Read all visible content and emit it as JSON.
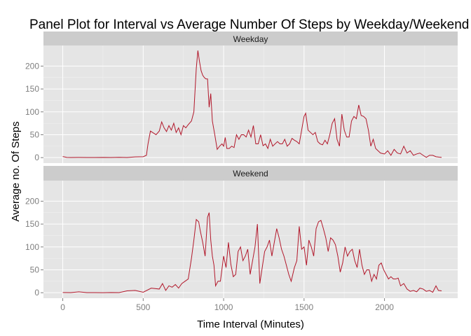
{
  "chart_data": {
    "type": "line",
    "title": "Panel Plot for Interval vs Average Number Of Steps by Weekday/Weekend",
    "xlabel": "Time Interval (Minutes)",
    "ylabel": "Average no. Of Steps",
    "xlim": [
      -120,
      2455
    ],
    "ylim": [
      -12,
      245
    ],
    "x_ticks": [
      0,
      500,
      1000,
      1500,
      2000
    ],
    "y_ticks": [
      0,
      50,
      100,
      150,
      200
    ],
    "grid": true,
    "line_color": "#b2182b",
    "panel_background": "#e5e5e5",
    "strip_background": "#cccccc",
    "panels": [
      {
        "label": "Weekday",
        "points": [
          [
            0,
            2.3
          ],
          [
            25,
            0.4
          ],
          [
            50,
            0.2
          ],
          [
            100,
            0.4
          ],
          [
            150,
            0.3
          ],
          [
            200,
            0.2
          ],
          [
            250,
            0.4
          ],
          [
            300,
            0.2
          ],
          [
            350,
            0.6
          ],
          [
            400,
            0.2
          ],
          [
            450,
            1.5
          ],
          [
            500,
            2
          ],
          [
            520,
            5
          ],
          [
            530,
            30
          ],
          [
            545,
            58
          ],
          [
            580,
            50
          ],
          [
            600,
            58
          ],
          [
            615,
            78
          ],
          [
            630,
            65
          ],
          [
            645,
            57
          ],
          [
            660,
            70
          ],
          [
            675,
            60
          ],
          [
            690,
            75
          ],
          [
            705,
            55
          ],
          [
            720,
            65
          ],
          [
            735,
            50
          ],
          [
            750,
            70
          ],
          [
            765,
            65
          ],
          [
            780,
            72
          ],
          [
            800,
            80
          ],
          [
            815,
            100
          ],
          [
            830,
            195
          ],
          [
            840,
            234
          ],
          [
            850,
            210
          ],
          [
            860,
            190
          ],
          [
            870,
            180
          ],
          [
            880,
            175
          ],
          [
            890,
            172
          ],
          [
            900,
            172
          ],
          [
            910,
            110
          ],
          [
            920,
            140
          ],
          [
            930,
            80
          ],
          [
            945,
            50
          ],
          [
            960,
            18
          ],
          [
            975,
            25
          ],
          [
            990,
            30
          ],
          [
            1000,
            25
          ],
          [
            1010,
            44
          ],
          [
            1020,
            20
          ],
          [
            1035,
            20
          ],
          [
            1050,
            25
          ],
          [
            1065,
            22
          ],
          [
            1080,
            50
          ],
          [
            1095,
            40
          ],
          [
            1110,
            50
          ],
          [
            1125,
            50
          ],
          [
            1140,
            45
          ],
          [
            1155,
            60
          ],
          [
            1170,
            45
          ],
          [
            1185,
            70
          ],
          [
            1200,
            30
          ],
          [
            1215,
            30
          ],
          [
            1230,
            50
          ],
          [
            1245,
            26
          ],
          [
            1260,
            30
          ],
          [
            1275,
            20
          ],
          [
            1290,
            40
          ],
          [
            1305,
            25
          ],
          [
            1320,
            30
          ],
          [
            1335,
            35
          ],
          [
            1350,
            30
          ],
          [
            1365,
            30
          ],
          [
            1380,
            40
          ],
          [
            1395,
            25
          ],
          [
            1410,
            30
          ],
          [
            1425,
            42
          ],
          [
            1440,
            38
          ],
          [
            1455,
            35
          ],
          [
            1470,
            30
          ],
          [
            1485,
            60
          ],
          [
            1500,
            90
          ],
          [
            1510,
            97
          ],
          [
            1525,
            60
          ],
          [
            1540,
            55
          ],
          [
            1555,
            50
          ],
          [
            1570,
            55
          ],
          [
            1585,
            35
          ],
          [
            1600,
            30
          ],
          [
            1615,
            28
          ],
          [
            1630,
            38
          ],
          [
            1645,
            30
          ],
          [
            1660,
            50
          ],
          [
            1675,
            75
          ],
          [
            1690,
            85
          ],
          [
            1705,
            40
          ],
          [
            1720,
            25
          ],
          [
            1735,
            95
          ],
          [
            1750,
            60
          ],
          [
            1765,
            45
          ],
          [
            1780,
            45
          ],
          [
            1795,
            80
          ],
          [
            1810,
            90
          ],
          [
            1825,
            85
          ],
          [
            1840,
            115
          ],
          [
            1855,
            92
          ],
          [
            1870,
            90
          ],
          [
            1885,
            85
          ],
          [
            1900,
            60
          ],
          [
            1915,
            25
          ],
          [
            1930,
            40
          ],
          [
            1945,
            20
          ],
          [
            1960,
            15
          ],
          [
            1975,
            10
          ],
          [
            2000,
            8
          ],
          [
            2020,
            15
          ],
          [
            2040,
            5
          ],
          [
            2060,
            18
          ],
          [
            2080,
            10
          ],
          [
            2100,
            8
          ],
          [
            2120,
            25
          ],
          [
            2140,
            10
          ],
          [
            2160,
            15
          ],
          [
            2180,
            5
          ],
          [
            2200,
            8
          ],
          [
            2220,
            10
          ],
          [
            2240,
            5
          ],
          [
            2260,
            0.5
          ],
          [
            2280,
            5
          ],
          [
            2300,
            5
          ],
          [
            2320,
            2
          ],
          [
            2340,
            1
          ],
          [
            2355,
            0.5
          ]
        ]
      },
      {
        "label": "Weekend",
        "points": [
          [
            0,
            0.4
          ],
          [
            50,
            0.2
          ],
          [
            100,
            2
          ],
          [
            150,
            0.2
          ],
          [
            200,
            0.2
          ],
          [
            250,
            0.1
          ],
          [
            300,
            0.5
          ],
          [
            350,
            0.2
          ],
          [
            400,
            4
          ],
          [
            450,
            5
          ],
          [
            500,
            1
          ],
          [
            550,
            10
          ],
          [
            600,
            8
          ],
          [
            620,
            20
          ],
          [
            640,
            5
          ],
          [
            660,
            15
          ],
          [
            680,
            12
          ],
          [
            700,
            18
          ],
          [
            720,
            10
          ],
          [
            740,
            20
          ],
          [
            760,
            25
          ],
          [
            780,
            30
          ],
          [
            800,
            75
          ],
          [
            815,
            115
          ],
          [
            830,
            160
          ],
          [
            845,
            155
          ],
          [
            855,
            135
          ],
          [
            870,
            110
          ],
          [
            885,
            80
          ],
          [
            900,
            165
          ],
          [
            910,
            175
          ],
          [
            920,
            115
          ],
          [
            930,
            80
          ],
          [
            940,
            60
          ],
          [
            950,
            15
          ],
          [
            965,
            25
          ],
          [
            980,
            25
          ],
          [
            1000,
            80
          ],
          [
            1015,
            55
          ],
          [
            1030,
            110
          ],
          [
            1045,
            62
          ],
          [
            1060,
            35
          ],
          [
            1075,
            40
          ],
          [
            1090,
            90
          ],
          [
            1105,
            100
          ],
          [
            1120,
            70
          ],
          [
            1135,
            80
          ],
          [
            1150,
            95
          ],
          [
            1165,
            40
          ],
          [
            1180,
            70
          ],
          [
            1195,
            100
          ],
          [
            1210,
            150
          ],
          [
            1225,
            20
          ],
          [
            1240,
            55
          ],
          [
            1255,
            90
          ],
          [
            1270,
            100
          ],
          [
            1285,
            115
          ],
          [
            1300,
            80
          ],
          [
            1315,
            110
          ],
          [
            1330,
            140
          ],
          [
            1345,
            120
          ],
          [
            1360,
            95
          ],
          [
            1375,
            80
          ],
          [
            1390,
            60
          ],
          [
            1405,
            40
          ],
          [
            1420,
            25
          ],
          [
            1440,
            55
          ],
          [
            1455,
            70
          ],
          [
            1470,
            145
          ],
          [
            1485,
            95
          ],
          [
            1500,
            100
          ],
          [
            1515,
            60
          ],
          [
            1530,
            115
          ],
          [
            1545,
            100
          ],
          [
            1560,
            80
          ],
          [
            1575,
            140
          ],
          [
            1590,
            155
          ],
          [
            1605,
            158
          ],
          [
            1620,
            140
          ],
          [
            1635,
            120
          ],
          [
            1650,
            90
          ],
          [
            1665,
            120
          ],
          [
            1680,
            115
          ],
          [
            1695,
            105
          ],
          [
            1710,
            80
          ],
          [
            1725,
            45
          ],
          [
            1740,
            65
          ],
          [
            1755,
            100
          ],
          [
            1770,
            80
          ],
          [
            1785,
            90
          ],
          [
            1800,
            95
          ],
          [
            1815,
            70
          ],
          [
            1830,
            55
          ],
          [
            1845,
            95
          ],
          [
            1860,
            60
          ],
          [
            1875,
            40
          ],
          [
            1890,
            50
          ],
          [
            1905,
            50
          ],
          [
            1920,
            25
          ],
          [
            1935,
            40
          ],
          [
            1950,
            30
          ],
          [
            1965,
            60
          ],
          [
            1980,
            65
          ],
          [
            1995,
            50
          ],
          [
            2010,
            40
          ],
          [
            2025,
            30
          ],
          [
            2040,
            35
          ],
          [
            2055,
            30
          ],
          [
            2070,
            30
          ],
          [
            2085,
            32
          ],
          [
            2100,
            15
          ],
          [
            2120,
            20
          ],
          [
            2140,
            8
          ],
          [
            2160,
            3
          ],
          [
            2180,
            5
          ],
          [
            2200,
            2
          ],
          [
            2220,
            10
          ],
          [
            2240,
            8
          ],
          [
            2260,
            3
          ],
          [
            2280,
            5
          ],
          [
            2300,
            1
          ],
          [
            2320,
            15
          ],
          [
            2335,
            5
          ],
          [
            2355,
            4
          ]
        ]
      }
    ]
  }
}
